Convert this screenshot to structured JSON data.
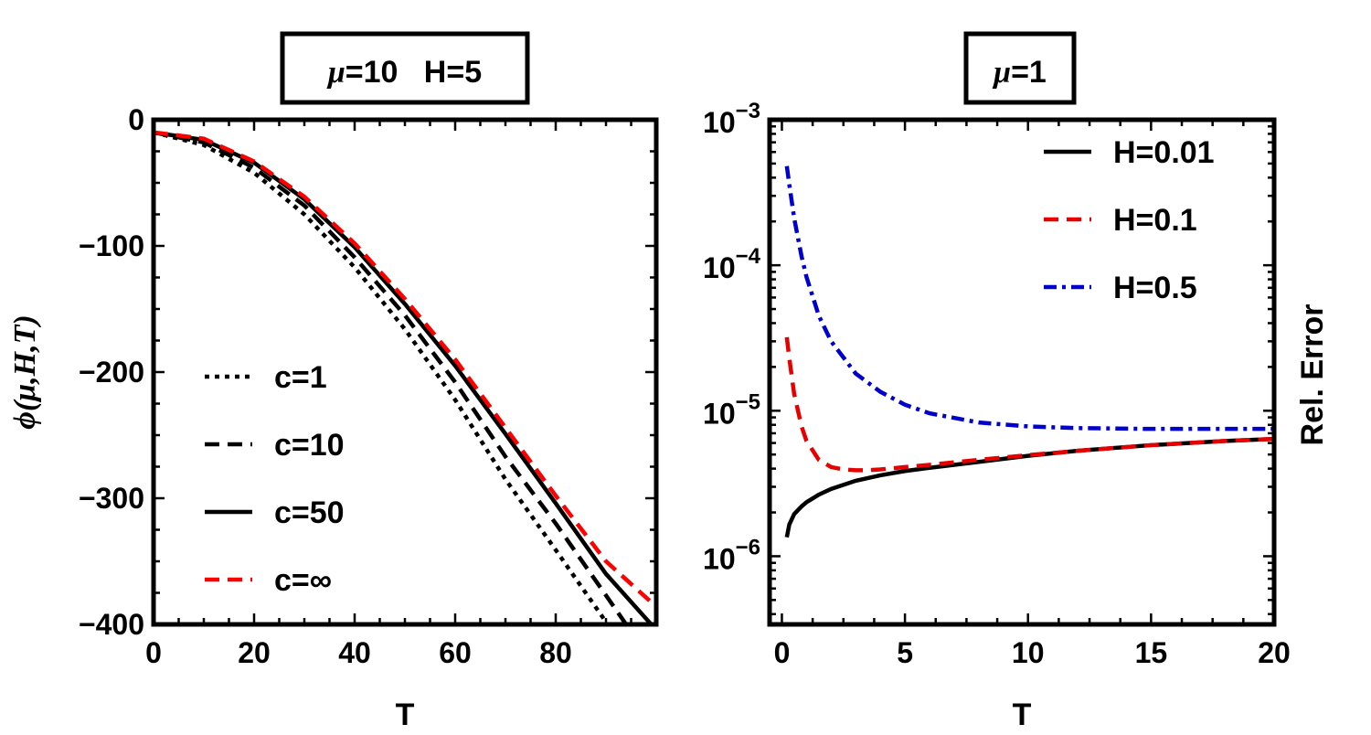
{
  "chart_data": [
    {
      "type": "line",
      "title": "μ=10   H=5",
      "title_greek": "μ",
      "title_rest": "=10   H=5",
      "xlabel": "T",
      "ylabel": "ϕ(μ,H,T)",
      "xlim": [
        0,
        100
      ],
      "ylim": [
        -400,
        0
      ],
      "xticks": [
        0,
        20,
        40,
        60,
        80
      ],
      "xtick_labels": [
        "0",
        "20",
        "40",
        "60",
        "80"
      ],
      "yticks": [
        0,
        -100,
        -200,
        -300,
        -400
      ],
      "ytick_labels": [
        "0",
        "−100",
        "−200",
        "−300",
        "−400"
      ],
      "legend_position": "bottom-left",
      "series": [
        {
          "name": "c=1",
          "color": "#000000",
          "dash": "dotted",
          "x": [
            0,
            10,
            20,
            30,
            40,
            50,
            60,
            70,
            80,
            90
          ],
          "values": [
            -10,
            -20,
            -42,
            -75,
            -117,
            -166,
            -222,
            -285,
            -341,
            -398
          ]
        },
        {
          "name": "c=10",
          "color": "#000000",
          "dash": "dashed",
          "x": [
            0,
            10,
            20,
            30,
            40,
            50,
            60,
            70,
            80,
            90,
            94
          ],
          "values": [
            -10,
            -18,
            -38,
            -68,
            -109,
            -155,
            -208,
            -267,
            -320,
            -377,
            -400
          ]
        },
        {
          "name": "c=50",
          "color": "#000000",
          "dash": "solid",
          "x": [
            0,
            10,
            20,
            30,
            40,
            50,
            60,
            70,
            80,
            90,
            99
          ],
          "values": [
            -10,
            -16,
            -34,
            -63,
            -101,
            -146,
            -195,
            -249,
            -304,
            -360,
            -400
          ]
        },
        {
          "name": "c=∞",
          "color": "#ff0000",
          "dash": "dashed",
          "x": [
            0,
            10,
            20,
            30,
            40,
            50,
            60,
            70,
            80,
            90,
            100
          ],
          "values": [
            -10,
            -15,
            -33,
            -61,
            -98,
            -142,
            -190,
            -244,
            -298,
            -350,
            -386
          ]
        }
      ]
    },
    {
      "type": "line",
      "title": "μ=1",
      "title_greek": "μ",
      "title_rest": "=1",
      "xlabel": "T",
      "ylabel": "Rel. Error",
      "yscale": "log",
      "xlim": [
        -0.5,
        20
      ],
      "ylim": [
        3.4e-07,
        0.001
      ],
      "xticks": [
        0,
        5,
        10,
        15,
        20
      ],
      "xtick_labels": [
        "0",
        "5",
        "10",
        "15",
        "20"
      ],
      "yticks": [
        1e-06,
        1e-05,
        0.0001,
        0.001
      ],
      "ytick_labels": [
        {
          "base": "10",
          "exp": "−6"
        },
        {
          "base": "10",
          "exp": "−5"
        },
        {
          "base": "10",
          "exp": "−4"
        },
        {
          "base": "10",
          "exp": "−3"
        }
      ],
      "legend_position": "top-right",
      "series": [
        {
          "name": "H=0.01",
          "color": "#000000",
          "dash": "solid",
          "x": [
            0.2,
            0.3,
            0.5,
            0.8,
            1,
            1.5,
            2,
            3,
            4,
            5,
            6,
            8,
            10,
            12,
            15,
            18,
            20
          ],
          "values": [
            1.35e-06,
            1.65e-06,
            1.95e-06,
            2.2e-06,
            2.35e-06,
            2.65e-06,
            2.9e-06,
            3.3e-06,
            3.6e-06,
            3.85e-06,
            4.05e-06,
            4.45e-06,
            4.9e-06,
            5.3e-06,
            5.8e-06,
            6.2e-06,
            6.4e-06
          ]
        },
        {
          "name": "H=0.1",
          "color": "#e60000",
          "dash": "dashed",
          "x": [
            0.2,
            0.3,
            0.5,
            0.8,
            1,
            1.5,
            2,
            2.5,
            3,
            3.5,
            4,
            5,
            6,
            8,
            10,
            12,
            15,
            18,
            20
          ],
          "values": [
            3.2e-05,
            2.3e-05,
            1.3e-05,
            7.8e-06,
            6.2e-06,
            4.6e-06,
            4.1e-06,
            3.95e-06,
            3.9e-06,
            3.9e-06,
            3.95e-06,
            4.1e-06,
            4.25e-06,
            4.6e-06,
            4.95e-06,
            5.3e-06,
            5.8e-06,
            6.2e-06,
            6.4e-06
          ]
        },
        {
          "name": "H=0.5",
          "color": "#0000cc",
          "dash": "dashdot",
          "x": [
            0.2,
            0.3,
            0.5,
            0.8,
            1,
            1.5,
            2,
            3,
            4,
            5,
            6,
            8,
            10,
            12,
            15,
            18,
            20
          ],
          "values": [
            0.00048,
            0.00036,
            0.00021,
            0.000115,
            8.3e-05,
            4.5e-05,
            3e-05,
            1.8e-05,
            1.35e-05,
            1.1e-05,
            9.6e-06,
            8.3e-06,
            7.8e-06,
            7.6e-06,
            7.5e-06,
            7.5e-06,
            7.5e-06
          ]
        }
      ]
    }
  ]
}
